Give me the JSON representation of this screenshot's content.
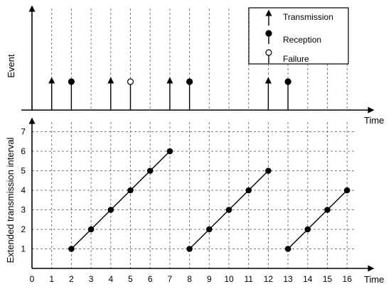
{
  "chart_data": [
    {
      "type": "event-timeline",
      "ylabel": "Event",
      "xlabel": "Time",
      "xlim": [
        0,
        16.9
      ],
      "grid": true,
      "legend": {
        "position": "top-right",
        "entries": [
          {
            "label": "Transmission",
            "marker": "arrow"
          },
          {
            "label": "Reception",
            "marker": "filled-circle"
          },
          {
            "label": "Failure",
            "marker": "open-circle"
          }
        ]
      },
      "events": [
        {
          "t": 1,
          "type": "transmission"
        },
        {
          "t": 2,
          "type": "reception"
        },
        {
          "t": 4,
          "type": "transmission"
        },
        {
          "t": 5,
          "type": "failure"
        },
        {
          "t": 7,
          "type": "transmission"
        },
        {
          "t": 8,
          "type": "reception"
        },
        {
          "t": 12,
          "type": "transmission"
        },
        {
          "t": 13,
          "type": "reception"
        }
      ]
    },
    {
      "type": "line",
      "ylabel": "Extended transmission interval",
      "xlabel": "Time",
      "xlim": [
        0,
        16.9
      ],
      "ylim": [
        0,
        7.5
      ],
      "x_ticks": [
        "0",
        "1",
        "2",
        "3",
        "4",
        "5",
        "6",
        "7",
        "8",
        "9",
        "10",
        "11",
        "12",
        "13",
        "14",
        "15",
        "16"
      ],
      "y_ticks": [
        "1",
        "2",
        "3",
        "4",
        "5",
        "6",
        "7"
      ],
      "grid": true,
      "series": [
        {
          "points": [
            [
              2,
              1
            ],
            [
              3,
              2
            ],
            [
              4,
              3
            ],
            [
              5,
              4
            ],
            [
              6,
              5
            ],
            [
              7,
              6
            ]
          ]
        },
        {
          "points": [
            [
              8,
              1
            ],
            [
              9,
              2
            ],
            [
              10,
              3
            ],
            [
              11,
              4
            ],
            [
              12,
              5
            ]
          ]
        },
        {
          "points": [
            [
              13,
              1
            ],
            [
              14,
              2
            ],
            [
              15,
              3
            ],
            [
              16,
              4
            ]
          ]
        }
      ]
    }
  ]
}
